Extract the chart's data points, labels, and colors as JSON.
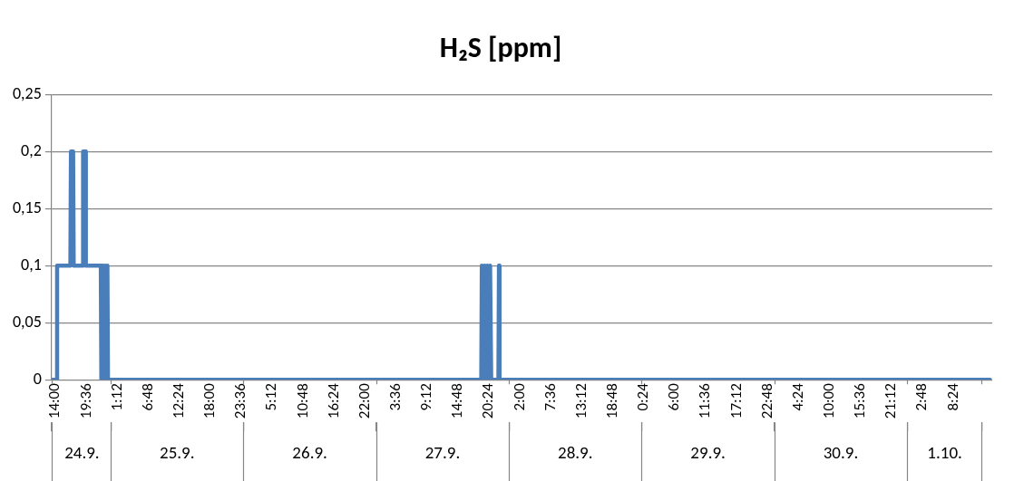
{
  "chart_data": {
    "type": "line",
    "title": "H₂S [ppm]",
    "series": [
      {
        "color": "#4a7ebb",
        "x": [
          "--09-24T13:30",
          "--09-24T14:12",
          "--09-24T14:18",
          "--09-24T16:42",
          "--09-24T16:48",
          "--09-24T17:12",
          "--09-24T17:18",
          "--09-24T18:54",
          "--09-24T19:00",
          "--09-24T19:24",
          "--09-24T19:30",
          "--09-24T22:12",
          "--09-24T22:18",
          "--09-24T22:30",
          "--09-24T22:36",
          "--09-24T22:48",
          "--09-24T23:00",
          "--09-24T23:12",
          "--09-24T23:24",
          "--09-24T23:30",
          "--09-27T19:00",
          "--09-27T19:06",
          "--09-27T19:24",
          "--09-27T19:36",
          "--09-27T19:54",
          "--09-27T20:06",
          "--09-27T20:24",
          "--09-27T20:36",
          "--09-27T20:48",
          "--09-27T22:06",
          "--09-27T22:12",
          "--09-27T22:18",
          "--10-01T15:00"
        ],
        "values": [
          0,
          0,
          0.1,
          0.1,
          0.2,
          0.2,
          0.1,
          0.1,
          0.2,
          0.2,
          0.1,
          0.1,
          0,
          0,
          0.1,
          0,
          0.1,
          0,
          0.1,
          0,
          0,
          0.1,
          0,
          0.1,
          0,
          0.1,
          0,
          0.1,
          0,
          0,
          0.1,
          0,
          0
        ]
      }
    ],
    "xlim": [
      "--09-24T13:18",
      "--10-01T15:24"
    ],
    "xticks": [
      {
        "value": "--09-24T14:00",
        "label": "14:00"
      },
      {
        "value": "--09-24T19:36",
        "label": "19:36"
      },
      {
        "value": "--09-25T01:12",
        "label": "1:12"
      },
      {
        "value": "--09-25T06:48",
        "label": "6:48"
      },
      {
        "value": "--09-25T12:24",
        "label": "12:24"
      },
      {
        "value": "--09-25T18:00",
        "label": "18:00"
      },
      {
        "value": "--09-25T23:36",
        "label": "23:36"
      },
      {
        "value": "--09-26T05:12",
        "label": "5:12"
      },
      {
        "value": "--09-26T10:48",
        "label": "10:48"
      },
      {
        "value": "--09-26T16:24",
        "label": "16:24"
      },
      {
        "value": "--09-26T22:00",
        "label": "22:00"
      },
      {
        "value": "--09-27T03:36",
        "label": "3:36"
      },
      {
        "value": "--09-27T09:12",
        "label": "9:12"
      },
      {
        "value": "--09-27T14:48",
        "label": "14:48"
      },
      {
        "value": "--09-27T20:24",
        "label": "20:24"
      },
      {
        "value": "--09-28T02:00",
        "label": "2:00"
      },
      {
        "value": "--09-28T07:36",
        "label": "7:36"
      },
      {
        "value": "--09-28T13:12",
        "label": "13:12"
      },
      {
        "value": "--09-28T18:48",
        "label": "18:48"
      },
      {
        "value": "--09-29T00:24",
        "label": "0:24"
      },
      {
        "value": "--09-29T06:00",
        "label": "6:00"
      },
      {
        "value": "--09-29T11:36",
        "label": "11:36"
      },
      {
        "value": "--09-29T17:12",
        "label": "17:12"
      },
      {
        "value": "--09-29T22:48",
        "label": "22:48"
      },
      {
        "value": "--09-30T04:24",
        "label": "4:24"
      },
      {
        "value": "--09-30T10:00",
        "label": "10:00"
      },
      {
        "value": "--09-30T15:36",
        "label": "15:36"
      },
      {
        "value": "--09-30T21:12",
        "label": "21:12"
      },
      {
        "value": "--10-01T02:48",
        "label": "2:48"
      },
      {
        "value": "--10-01T08:24",
        "label": "8:24"
      }
    ],
    "x2lim": [
      "--09-24T13:18",
      "--10-01T15:24"
    ],
    "x2ticks": [
      {
        "value": "--09-24T13:18",
        "label": null
      },
      {
        "value": "--09-24T18:48",
        "label": "24.9."
      },
      {
        "value": "--09-25T00:00",
        "label": null
      },
      {
        "value": "--09-25T12:00",
        "label": "25.9."
      },
      {
        "value": "--09-26T00:00",
        "label": null
      },
      {
        "value": "--09-26T12:00",
        "label": "26.9."
      },
      {
        "value": "--09-27T00:00",
        "label": null
      },
      {
        "value": "--09-27T12:00",
        "label": "27.9."
      },
      {
        "value": "--09-28T00:00",
        "label": null
      },
      {
        "value": "--09-28T12:00",
        "label": "28.9."
      },
      {
        "value": "--09-29T00:00",
        "label": null
      },
      {
        "value": "--09-29T12:00",
        "label": "29.9."
      },
      {
        "value": "--09-30T00:00",
        "label": null
      },
      {
        "value": "--09-30T12:00",
        "label": "30.9."
      },
      {
        "value": "--10-01T00:00",
        "label": null
      },
      {
        "value": "--10-01T06:48",
        "label": "1.10."
      },
      {
        "value": "--10-01T13:30",
        "label": null
      }
    ],
    "ylim": [
      0,
      0.25
    ],
    "yticks": [
      0,
      {
        "value": 0.05,
        "label": "0,05"
      },
      {
        "value": 0.1,
        "label": "0,1"
      },
      {
        "value": 0.15,
        "label": "0,15"
      },
      {
        "value": 0.2,
        "label": "0,2"
      },
      {
        "value": 0.25,
        "label": "0,25"
      }
    ],
    "grid": "y",
    "legend": false,
    "marker": "none",
    "line_style": "solid"
  }
}
